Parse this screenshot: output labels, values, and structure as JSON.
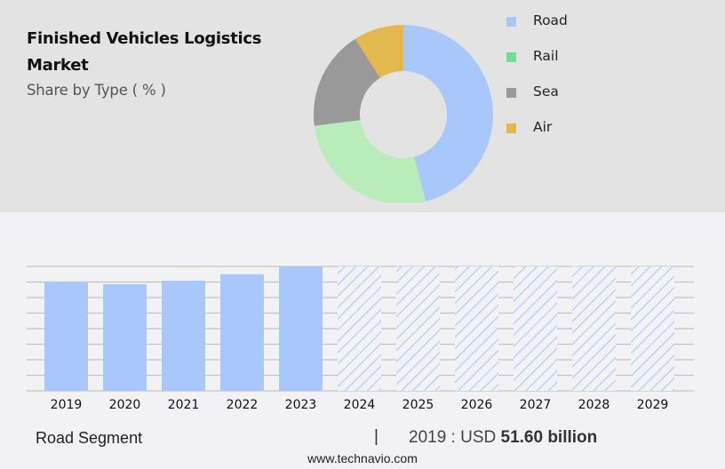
{
  "header": {
    "title": "Finished Vehicles Logistics Market",
    "subtitle": "Share by Type ( % )"
  },
  "legend": {
    "items": [
      {
        "label": "Road",
        "color": "#a8c8fc"
      },
      {
        "label": "Rail",
        "color": "#6ee08f"
      },
      {
        "label": "Sea",
        "color": "#999999"
      },
      {
        "label": "Air",
        "color": "#e3b84f"
      }
    ]
  },
  "footer": {
    "segment": "Road Segment",
    "separator": "|",
    "year_label": "2019 : USD ",
    "value": "51.60 billion",
    "url": "www.technavio.com"
  },
  "colors": {
    "header_bg": "#e3e3e3",
    "page_bg": "#f2f2f4",
    "bar": "#a8c8fc",
    "gridline": "#c4c4c4"
  },
  "chart_data": [
    {
      "type": "pie",
      "title": "Finished Vehicles Logistics Market",
      "subtitle": "Share by Type ( % )",
      "donut": true,
      "categories": [
        "Road",
        "Rail",
        "Sea",
        "Air"
      ],
      "values": [
        46,
        27,
        18,
        9
      ],
      "colors": [
        "#a8c8fc",
        "#b8edb9",
        "#999999",
        "#e3b84f"
      ],
      "legend_position": "right"
    },
    {
      "type": "bar",
      "title": "Road Segment",
      "categories": [
        "2019",
        "2020",
        "2021",
        "2022",
        "2023",
        "2024",
        "2025",
        "2026",
        "2027",
        "2028",
        "2029"
      ],
      "values": [
        51.6,
        50.8,
        52.1,
        54.4,
        57.2,
        null,
        null,
        null,
        null,
        null,
        null
      ],
      "forecast_categories": [
        "2024",
        "2025",
        "2026",
        "2027",
        "2028",
        "2029"
      ],
      "forecast_style": "hatched",
      "annotation": "2019 : USD 51.60 billion",
      "xlabel": "",
      "ylabel": "",
      "grid": true,
      "y_axis_labels": false
    }
  ]
}
